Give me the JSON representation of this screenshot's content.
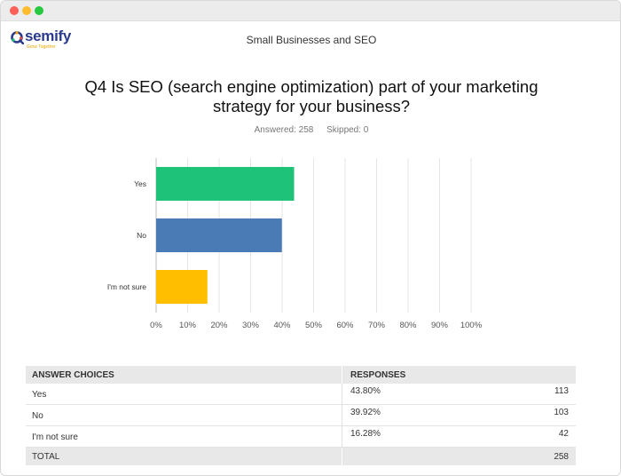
{
  "window": {
    "controls": [
      "close",
      "minimize",
      "maximize"
    ]
  },
  "logo": {
    "name": "semify",
    "tagline": "Grow Together",
    "colors": {
      "text": "#2a3a8c",
      "accent": "#f0a500"
    }
  },
  "header": {
    "survey_title": "Small Businesses and SEO"
  },
  "question": {
    "title": "Q4 Is SEO (search engine optimization) part of your marketing strategy for your business?",
    "answered": "Answered: 258",
    "skipped": "Skipped: 0"
  },
  "chart_data": {
    "type": "bar",
    "orientation": "horizontal",
    "categories": [
      "Yes",
      "No",
      "I'm not sure"
    ],
    "values": [
      43.8,
      39.92,
      16.28
    ],
    "colors": [
      "#1ec278",
      "#4a7bb5",
      "#ffbf00"
    ],
    "xlim": [
      0,
      100
    ],
    "ticks": [
      "0%",
      "10%",
      "20%",
      "30%",
      "40%",
      "50%",
      "60%",
      "70%",
      "80%",
      "90%",
      "100%"
    ],
    "grid": true
  },
  "table": {
    "headers": {
      "choice": "ANSWER CHOICES",
      "responses": "RESPONSES"
    },
    "rows": [
      {
        "choice": "Yes",
        "percent": "43.80%",
        "count": "113"
      },
      {
        "choice": "No",
        "percent": "39.92%",
        "count": "103"
      },
      {
        "choice": "I'm not sure",
        "percent": "16.28%",
        "count": "42"
      }
    ],
    "total": {
      "label": "TOTAL",
      "count": "258"
    }
  }
}
